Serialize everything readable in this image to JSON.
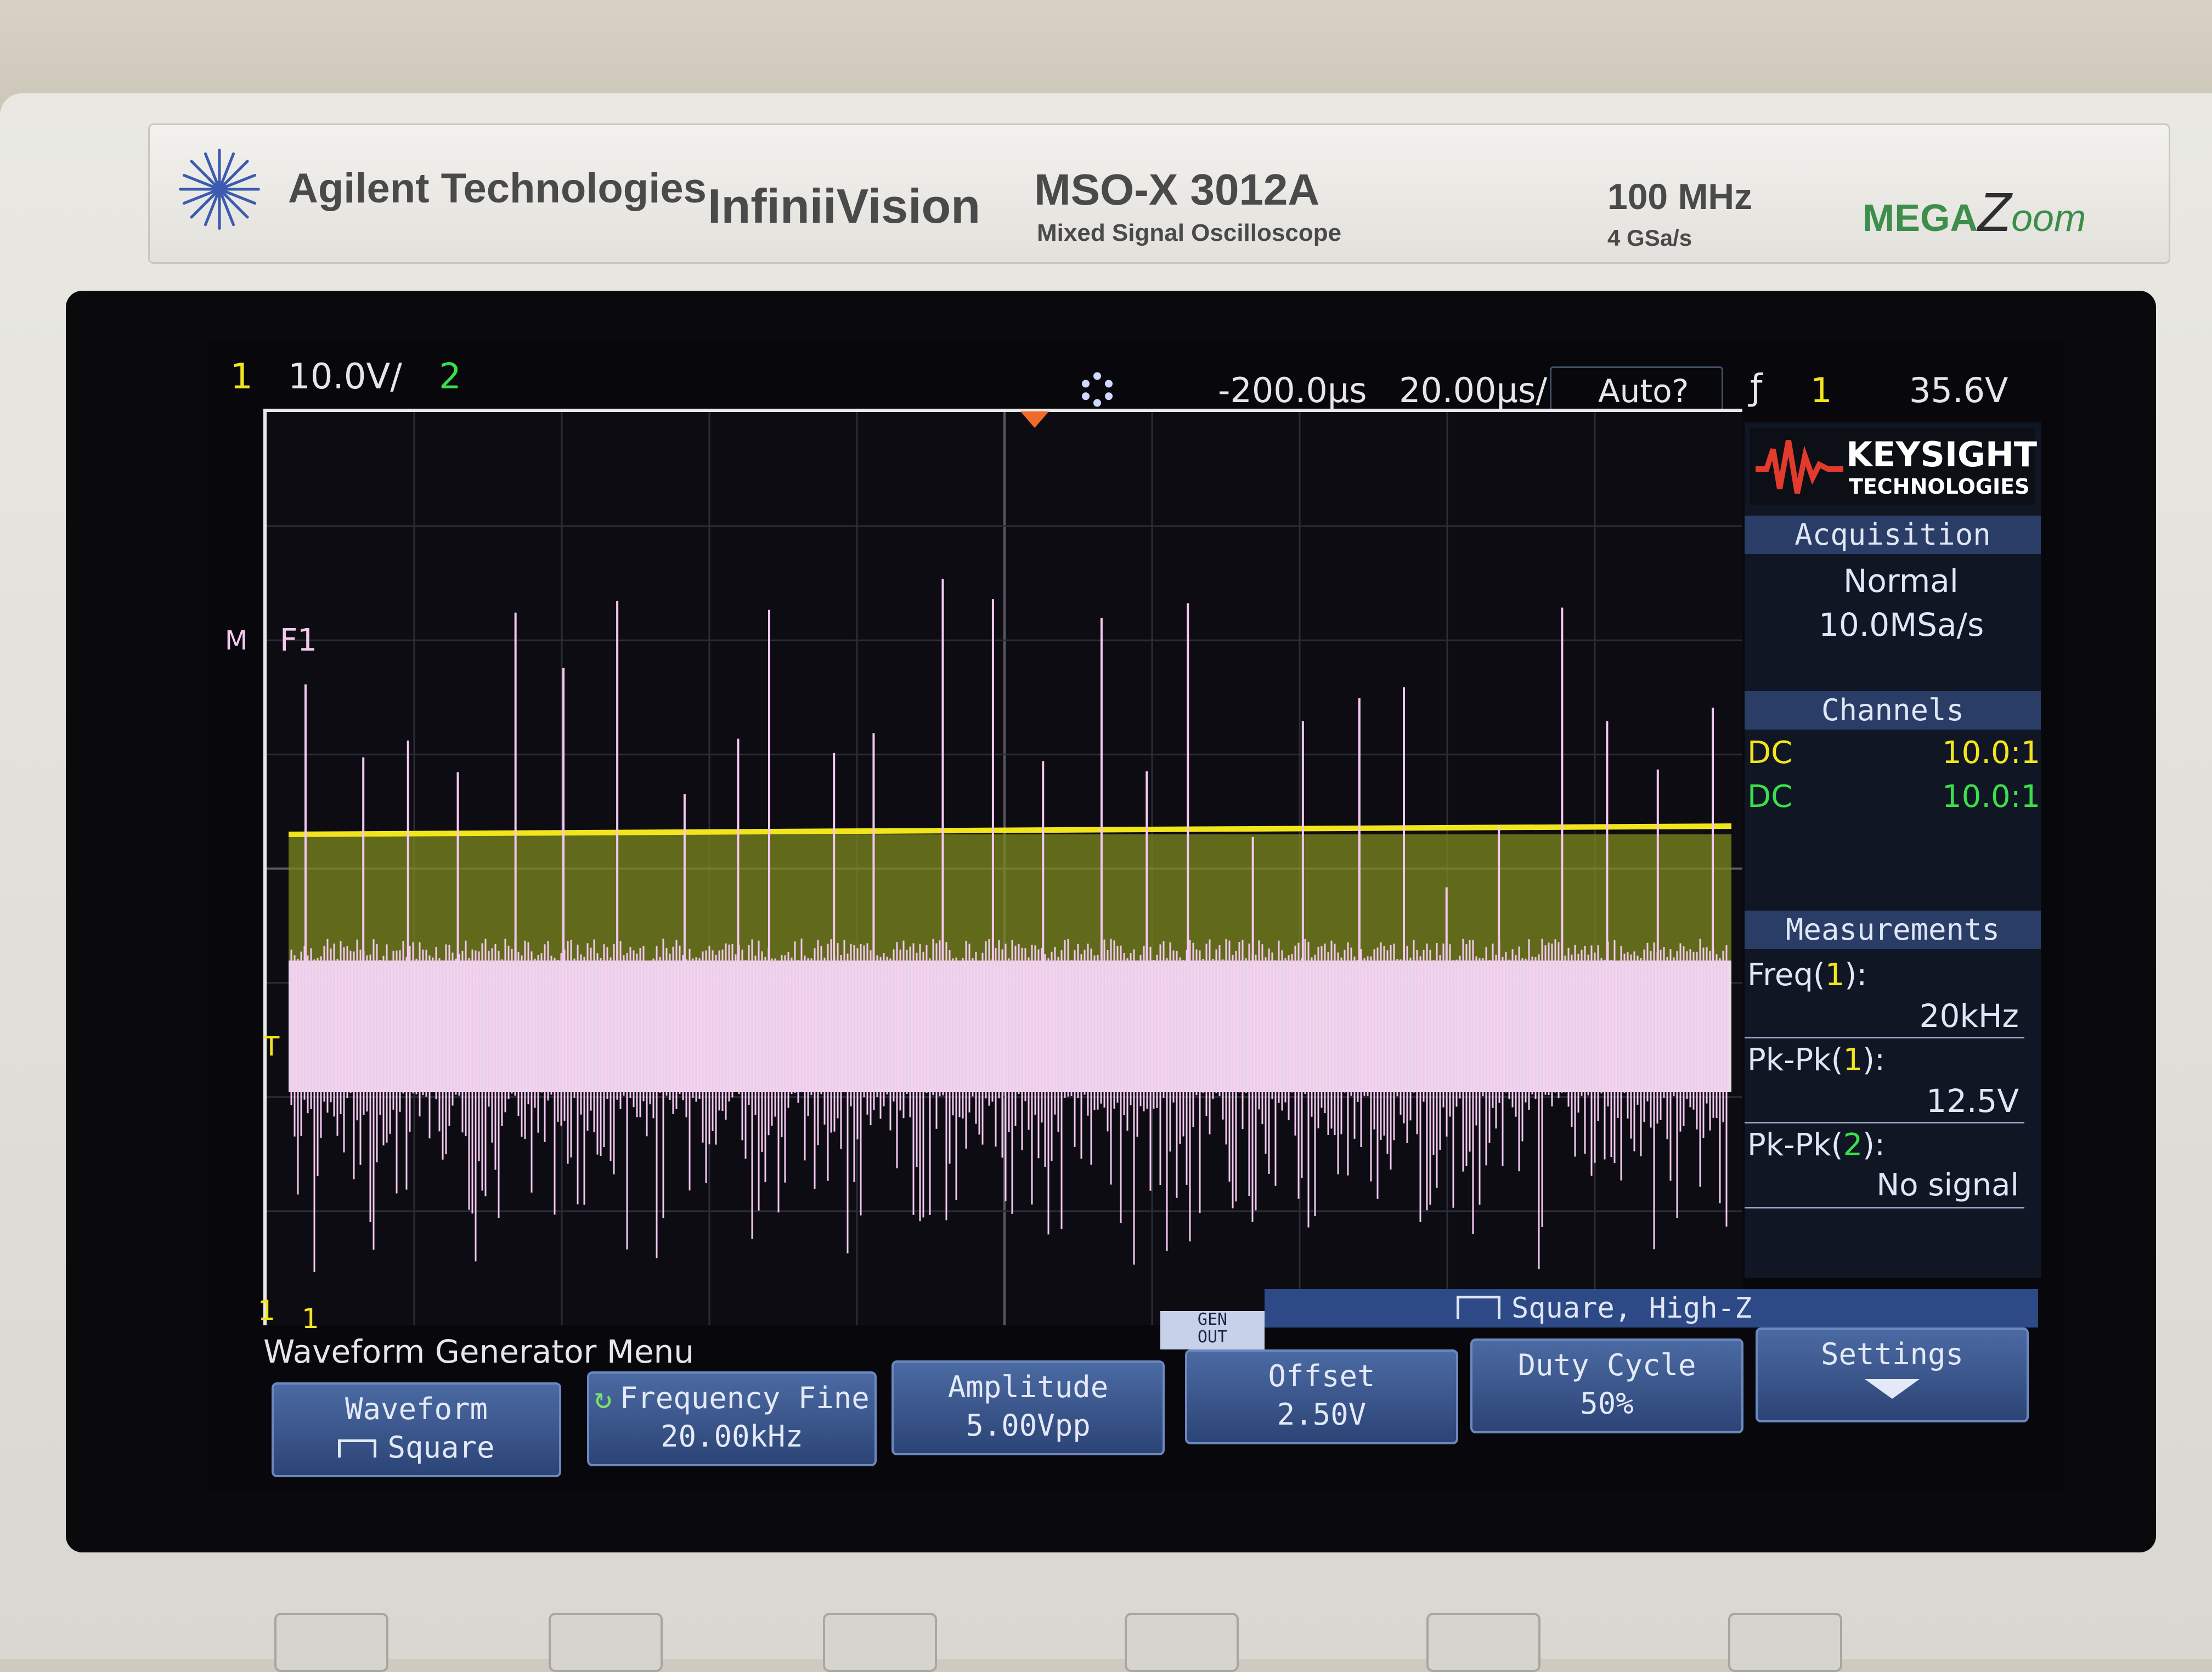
{
  "header": {
    "brand": "Agilent Technologies",
    "product_line": "InfiniiVision",
    "model": "MSO-X 3012A",
    "model_subtitle": "Mixed Signal Oscilloscope",
    "bandwidth": "100 MHz",
    "sample_rate": "4 GSa/s",
    "megazoom_prefix": "MEGA",
    "megazoom_z": "Z",
    "megazoom_suffix": "oom"
  },
  "status_bar": {
    "ch1_num": "1",
    "ch1_scale": "10.0V/",
    "ch2_num": "2",
    "delay": "-200.0µs",
    "timebase": "20.00µs/",
    "trigger_mode": "Auto?",
    "trigger_icon": "ƒ",
    "trigger_source": "1",
    "trigger_level": "35.6V"
  },
  "graticule": {
    "marker_math": "M",
    "marker_f1": "F1",
    "marker_trigger": "T",
    "marker_ch1_a": "1",
    "marker_ch1_b": "1"
  },
  "sidebar": {
    "logo_name": "KEYSIGHT",
    "logo_sub": "TECHNOLOGIES",
    "acquisition_title": "Acquisition",
    "acquisition_mode": "Normal",
    "acquisition_rate": "10.0MSa/s",
    "channels_title": "Channels",
    "channels": [
      {
        "coupling": "DC",
        "probe": "10.0:1"
      },
      {
        "coupling": "DC",
        "probe": "10.0:1"
      }
    ],
    "measurements_title": "Measurements",
    "measurements": [
      {
        "name_prefix": "Freq(",
        "ch": "1",
        "name_suffix": "):",
        "value": "20kHz"
      },
      {
        "name_prefix": "Pk-Pk(",
        "ch": "1",
        "name_suffix": "):",
        "value": "12.5V"
      },
      {
        "name_prefix": "Pk-Pk(",
        "ch": "2",
        "name_suffix": "):",
        "value": "No signal"
      }
    ]
  },
  "menu": {
    "title": "Waveform Generator Menu",
    "gen_out_line1": "GEN",
    "gen_out_line2": "OUT",
    "gen_status": "Square, High-Z",
    "softkeys": [
      {
        "label": "Waveform",
        "value": "Square"
      },
      {
        "label": "Frequency Fine",
        "value": "20.00kHz"
      },
      {
        "label": "Amplitude",
        "value": "5.00Vpp"
      },
      {
        "label": "Offset",
        "value": "2.50V"
      },
      {
        "label": "Duty Cycle",
        "value": "50%"
      },
      {
        "label": "Settings",
        "value": ""
      }
    ]
  },
  "colors": {
    "ch1": "#f2e51c",
    "ch2": "#39e04a",
    "math": "#f4c8f0",
    "trigger_marker": "#f06a2a",
    "panel_head": "#2a3d66"
  }
}
